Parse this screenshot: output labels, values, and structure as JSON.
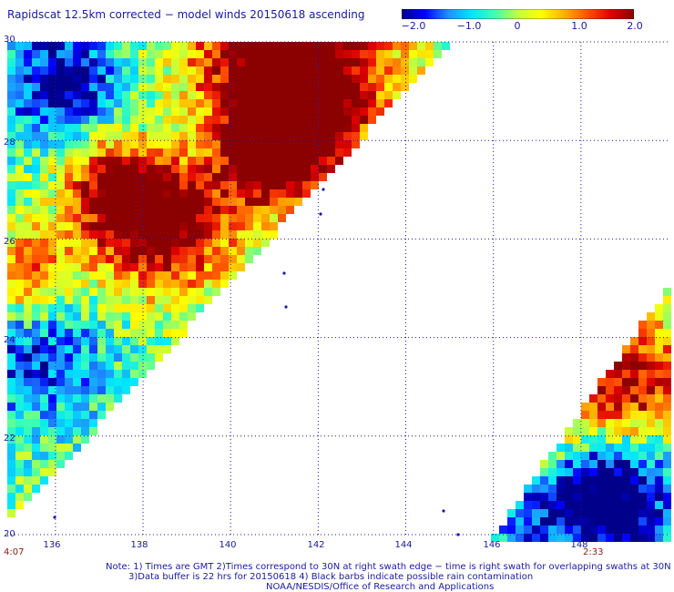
{
  "title": "Rapidscat 12.5km corrected − model winds 20150618 ascending",
  "colorbar": {
    "ticks": [
      "−2.0",
      "−1.0",
      "0",
      "1.0",
      "2.0"
    ],
    "tick_values": [
      -2.0,
      -1.0,
      0,
      1.0,
      2.0
    ],
    "colors": [
      "#00008b",
      "#0000ff",
      "#1e90ff",
      "#00e5ff",
      "#40ffb0",
      "#c0ff40",
      "#ffff00",
      "#ffb000",
      "#ff5000",
      "#e00000",
      "#8b0000"
    ]
  },
  "axes": {
    "lat_labels": [
      "30",
      "28",
      "26",
      "24",
      "22",
      "20"
    ],
    "lat_values": [
      30,
      28,
      26,
      24,
      22,
      20
    ],
    "lon_labels": [
      "136",
      "138",
      "140",
      "142",
      "144",
      "146",
      "148"
    ],
    "lon_values": [
      136,
      138,
      140,
      142,
      144,
      146,
      148
    ],
    "lon_range": [
      134.9,
      150.0
    ],
    "lat_range": [
      20.0,
      30.0
    ],
    "grid": "dotted"
  },
  "times": {
    "left": "4:07",
    "right": "2:33"
  },
  "notes": [
    "Note: 1) Times are GMT 2)Times correspond to 30N at right swath edge − time is right swath for overlapping swaths at 30N",
    "3)Data buffer is 22 hrs for 20150618 4) Black barbs indicate possible rain contamination",
    "NOAA/NESDIS/Office of Research and Applications"
  ]
}
